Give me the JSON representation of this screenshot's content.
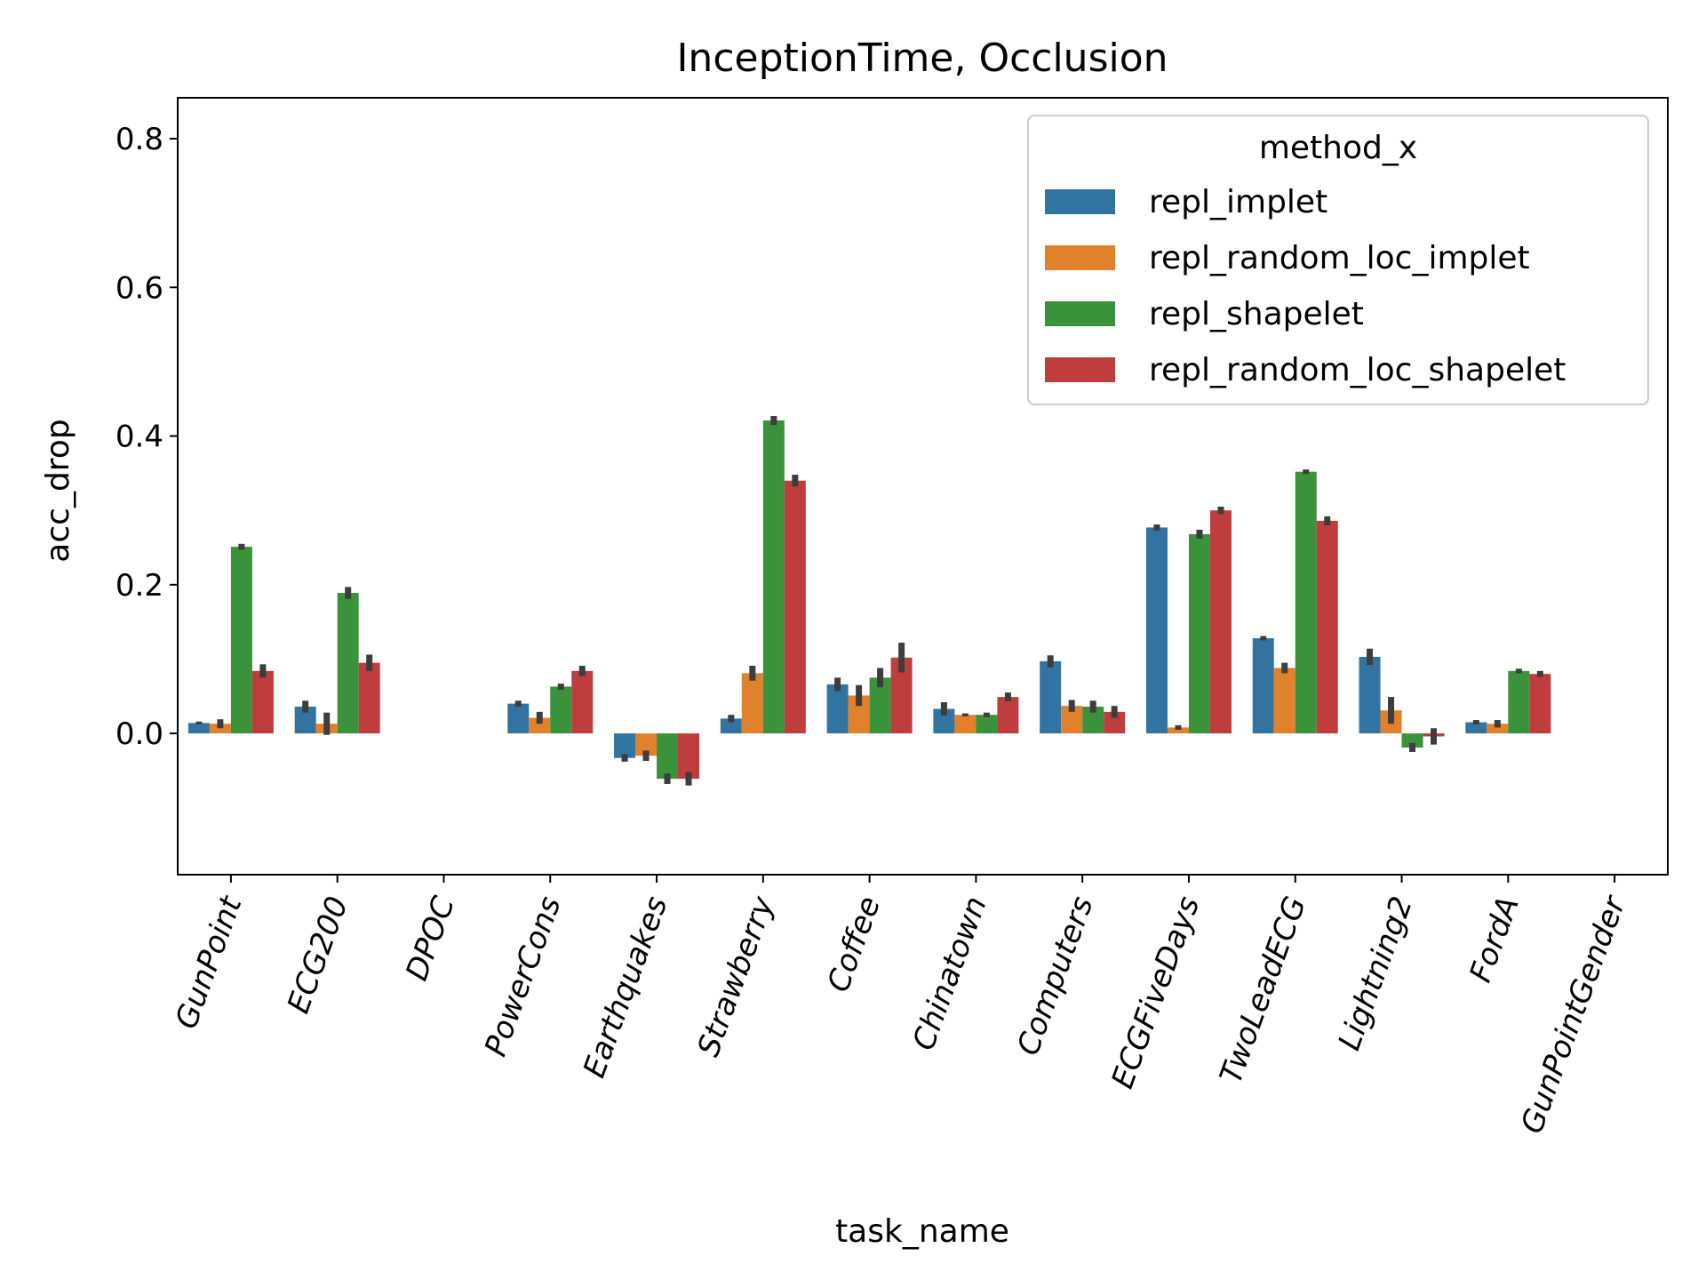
{
  "chart_data": {
    "type": "bar",
    "title": "InceptionTime, Occlusion",
    "xlabel": "task_name",
    "ylabel": "acc_drop",
    "ylim": [
      -0.19,
      0.855
    ],
    "yticks": [
      "0.0",
      "0.2",
      "0.4",
      "0.6",
      "0.8"
    ],
    "grid": false,
    "legend": {
      "title": "method_x",
      "placement": "top-right"
    },
    "categories": [
      "GunPoint",
      "ECG200",
      "DPOC",
      "PowerCons",
      "Earthquakes",
      "Strawberry",
      "Coffee",
      "Chinatown",
      "Computers",
      "ECGFiveDays",
      "TwoLeadECG",
      "Lightning2",
      "FordA",
      "GunPointGender"
    ],
    "series": [
      {
        "name": "repl_implet",
        "color": "#3274a1",
        "values": [
          0.014,
          0.036,
          null,
          0.04,
          -0.033,
          0.02,
          0.066,
          0.033,
          0.097,
          0.277,
          0.128,
          0.103,
          0.015,
          null
        ],
        "err": [
          0.002,
          0.008,
          null,
          0.004,
          0.005,
          0.005,
          0.009,
          0.009,
          0.008,
          0.004,
          0.003,
          0.011,
          0.003,
          null
        ]
      },
      {
        "name": "repl_random_loc_implet",
        "color": "#e1812c",
        "values": [
          0.013,
          0.013,
          null,
          0.021,
          -0.03,
          0.081,
          0.051,
          0.025,
          0.037,
          0.008,
          0.088,
          0.031,
          0.013,
          null
        ],
        "err": [
          0.006,
          0.015,
          null,
          0.008,
          0.007,
          0.01,
          0.014,
          0.002,
          0.008,
          0.003,
          0.007,
          0.018,
          0.005,
          null
        ]
      },
      {
        "name": "repl_shapelet",
        "color": "#3a923a",
        "values": [
          0.251,
          0.189,
          null,
          0.063,
          -0.061,
          0.421,
          0.075,
          0.025,
          0.036,
          0.268,
          0.352,
          -0.019,
          0.084,
          null
        ],
        "err": [
          0.004,
          0.008,
          null,
          0.004,
          0.007,
          0.006,
          0.013,
          0.003,
          0.008,
          0.006,
          0.003,
          0.006,
          0.003,
          null
        ]
      },
      {
        "name": "repl_random_loc_shapelet",
        "color": "#c03d3e",
        "values": [
          0.084,
          0.095,
          null,
          0.084,
          -0.061,
          0.34,
          0.102,
          0.049,
          0.029,
          0.3,
          0.286,
          -0.004,
          0.08,
          null
        ],
        "err": [
          0.009,
          0.011,
          null,
          0.007,
          0.009,
          0.008,
          0.02,
          0.006,
          0.008,
          0.005,
          0.006,
          0.011,
          0.004,
          null
        ]
      }
    ]
  }
}
